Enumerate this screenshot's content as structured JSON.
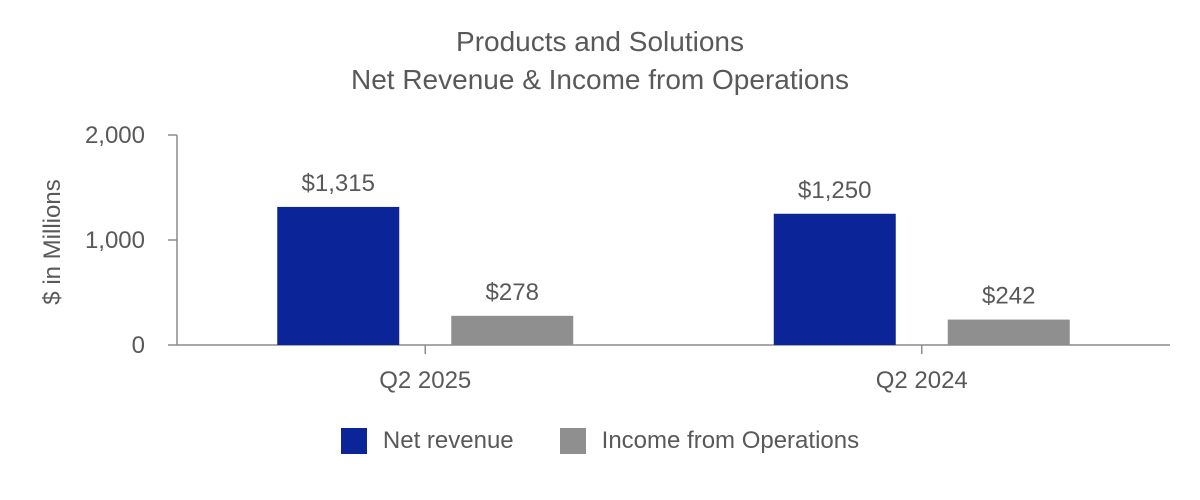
{
  "chart_data": {
    "type": "bar",
    "title": "Products and Solutions",
    "subtitle": "Net Revenue & Income from Operations",
    "ylabel": "$ in Millions",
    "xlabel": "",
    "ylim": [
      0,
      2000
    ],
    "yticks": [
      0,
      1000,
      2000
    ],
    "ytick_labels": [
      "0",
      "1,000",
      "2,000"
    ],
    "grid": false,
    "legend_position": "bottom",
    "categories": [
      "Q2 2025",
      "Q2 2024"
    ],
    "series": [
      {
        "name": "Net revenue",
        "color": "#0b2497",
        "values": [
          1315,
          1250
        ],
        "labels": [
          "$1,315",
          "$1,250"
        ]
      },
      {
        "name": "Income from Operations",
        "color": "#8f8f8f",
        "values": [
          278,
          242
        ],
        "labels": [
          "$278",
          "$242"
        ]
      }
    ]
  }
}
